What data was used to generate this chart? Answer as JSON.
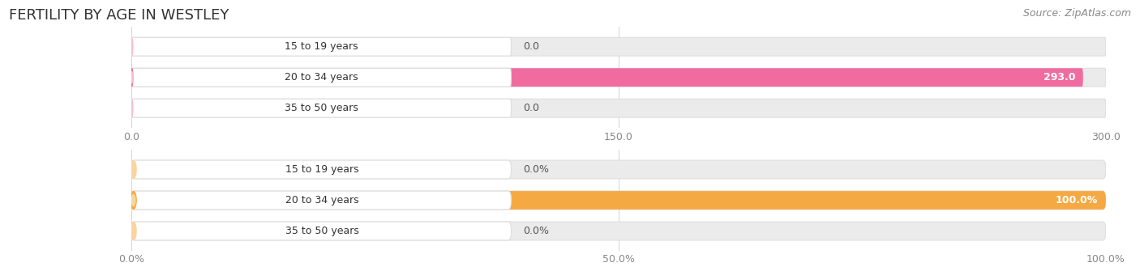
{
  "title": "FERTILITY BY AGE IN WESTLEY",
  "source": "Source: ZipAtlas.com",
  "top_chart": {
    "categories": [
      "15 to 19 years",
      "20 to 34 years",
      "35 to 50 years"
    ],
    "values": [
      0.0,
      293.0,
      0.0
    ],
    "max_val": 300.0,
    "xlim": [
      0,
      300.0
    ],
    "xticks": [
      0.0,
      150.0,
      300.0
    ],
    "xtick_labels": [
      "0.0",
      "150.0",
      "300.0"
    ],
    "bar_color": "#F06CA0",
    "bar_color_light": "#F8C0D0",
    "bar_bg_color": "#EBEBEB",
    "bar_bg_outline": "#DEDEDE"
  },
  "bottom_chart": {
    "categories": [
      "15 to 19 years",
      "20 to 34 years",
      "35 to 50 years"
    ],
    "values": [
      0.0,
      100.0,
      0.0
    ],
    "max_val": 100.0,
    "xlim": [
      0,
      100.0
    ],
    "xticks": [
      0.0,
      50.0,
      100.0
    ],
    "xtick_labels": [
      "0.0%",
      "50.0%",
      "100.0%"
    ],
    "bar_color": "#F5A942",
    "bar_color_light": "#F9D4A0",
    "bar_bg_color": "#EBEBEB",
    "bar_bg_outline": "#DEDEDE"
  },
  "background_color": "#FFFFFF",
  "bar_height": 0.6,
  "font_size_title": 13,
  "font_size_labels": 9,
  "font_size_ticks": 9,
  "font_size_source": 9,
  "font_size_value": 9
}
